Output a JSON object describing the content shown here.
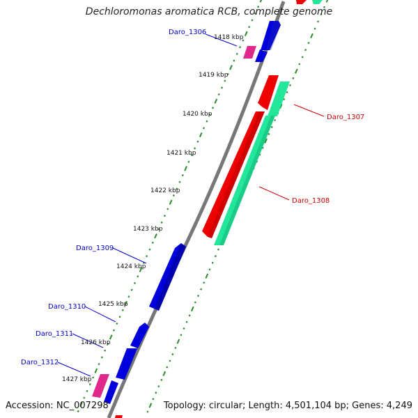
{
  "title": "Dechloromonas aromatica RCB, complete genome",
  "footer": {
    "accession": "Accession: NC_007298",
    "topology": "Topology: circular; Length: 4,501,104 bp; Genes: 4,249"
  },
  "colors": {
    "backbone": "#888888",
    "tick": "#2a8a2a",
    "forward_cds": "#0000dd",
    "forward_rna": "#e0278a",
    "reverse_cds": "#ee0000",
    "reverse_other": "#22e69a",
    "label_forward": "#0000cc",
    "label_reverse": "#cc0000"
  },
  "kbp_ticks": [
    "1418 kbp",
    "1419 kbp",
    "1420 kbp",
    "1421 kbp",
    "1422 kbp",
    "1423 kbp",
    "1424 kbp",
    "1425 kbp",
    "1426 kbp",
    "1427 kbp"
  ],
  "genes": [
    {
      "label": "Daro_1306",
      "strand": "forward"
    },
    {
      "label": "Daro_1307",
      "strand": "reverse"
    },
    {
      "label": "Daro_1308",
      "strand": "reverse"
    },
    {
      "label": "Daro_1309",
      "strand": "forward"
    },
    {
      "label": "Daro_1310",
      "strand": "forward"
    },
    {
      "label": "Daro_1311",
      "strand": "forward"
    },
    {
      "label": "Daro_1312",
      "strand": "forward"
    }
  ]
}
